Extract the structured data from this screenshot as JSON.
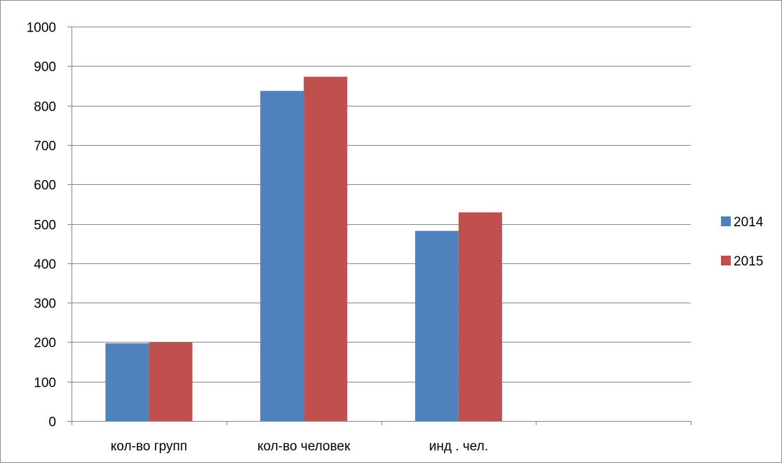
{
  "chart_data": {
    "type": "bar",
    "categories": [
      "кол-во групп",
      "кол-во человек",
      "инд . чел.",
      ""
    ],
    "series": [
      {
        "name": "2014",
        "values": [
          197,
          837,
          482,
          null
        ],
        "color": "#4f81bd"
      },
      {
        "name": "2015",
        "values": [
          199,
          873,
          529,
          null
        ],
        "color": "#c0504d"
      }
    ],
    "ylim": [
      0,
      1000
    ],
    "yticks": [
      0,
      100,
      200,
      300,
      400,
      500,
      600,
      700,
      800,
      900,
      1000
    ],
    "grid": true,
    "legend_position": "right",
    "title": "",
    "xlabel": "",
    "ylabel": ""
  }
}
